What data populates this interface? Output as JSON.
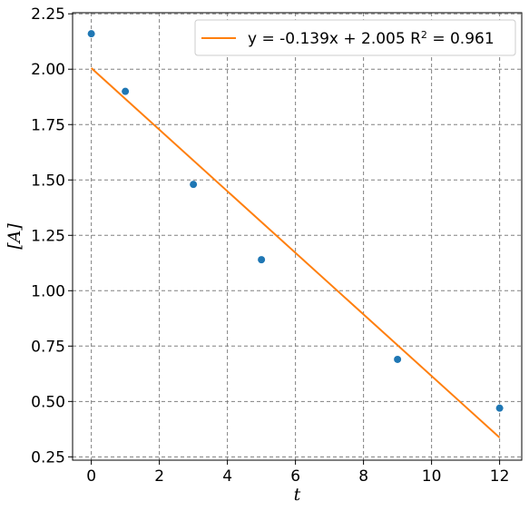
{
  "chart_data": {
    "type": "scatter",
    "xlabel": "t",
    "ylabel": "[A]",
    "xlim": [
      -0.55,
      12.65
    ],
    "ylim": [
      0.235,
      2.255
    ],
    "xticks": [
      0,
      2,
      4,
      6,
      8,
      10,
      12
    ],
    "xtick_labels": [
      "0",
      "2",
      "4",
      "6",
      "8",
      "10",
      "12"
    ],
    "yticks": [
      0.25,
      0.5,
      0.75,
      1.0,
      1.25,
      1.5,
      1.75,
      2.0,
      2.25
    ],
    "ytick_labels": [
      "0.25",
      "0.50",
      "0.75",
      "1.00",
      "1.25",
      "1.50",
      "1.75",
      "2.00",
      "2.25"
    ],
    "grid": true,
    "legend_position": "top-right",
    "points": {
      "x": [
        0,
        1,
        3,
        5,
        9,
        12
      ],
      "y": [
        2.16,
        1.9,
        1.48,
        1.14,
        0.69,
        0.47
      ],
      "color": "#1f77b4"
    },
    "fit_line": {
      "slope": -0.139,
      "intercept": 2.005,
      "x_range": [
        0,
        12
      ],
      "color": "#ff7f0e",
      "label_prefix": "y = -0.139x + 2.005  R",
      "label_sup": "2",
      "label_suffix": " = 0.961"
    }
  }
}
